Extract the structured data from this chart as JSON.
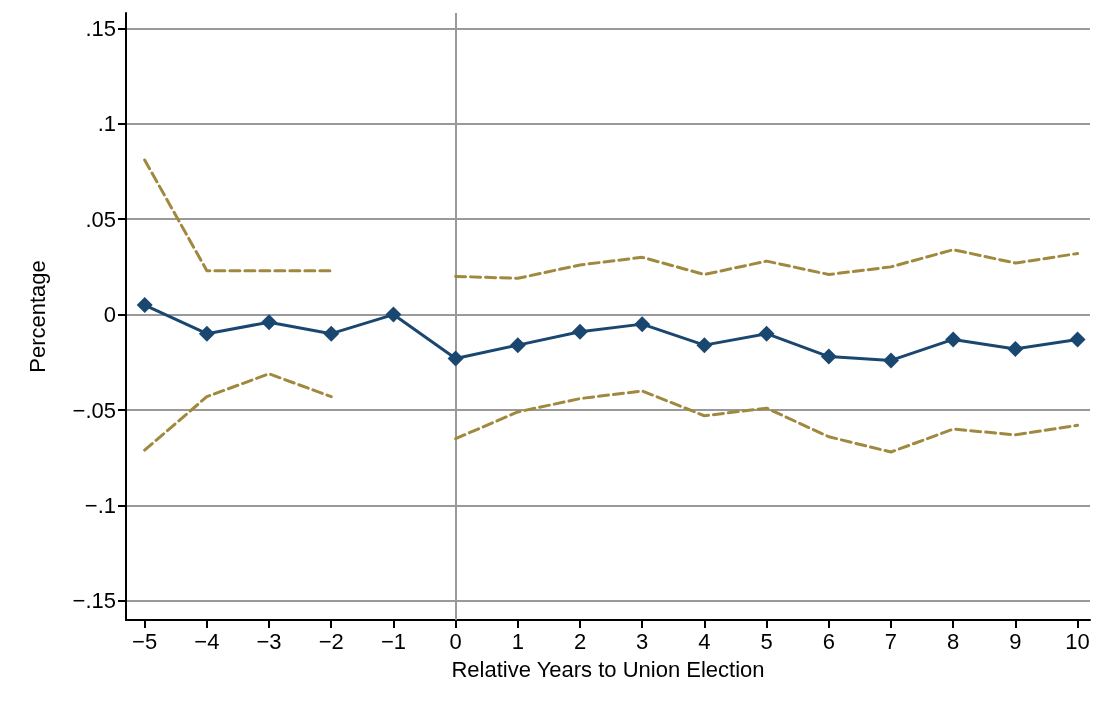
{
  "chart_data": {
    "type": "line",
    "xlabel": "Relative Years to Union Election",
    "ylabel": "Percentage",
    "x": [
      -5,
      -4,
      -3,
      -2,
      -1,
      0,
      1,
      2,
      3,
      4,
      5,
      6,
      7,
      8,
      9,
      10
    ],
    "series": [
      {
        "color": "#1a476f",
        "marker": "diamond",
        "line_style": "solid",
        "values": [
          0.005,
          -0.01,
          -0.004,
          -0.01,
          0,
          -0.023,
          -0.016,
          -0.009,
          -0.005,
          -0.016,
          -0.01,
          -0.022,
          -0.024,
          -0.013,
          -0.018,
          -0.013
        ]
      },
      {
        "color": "#a0893f",
        "marker": "none",
        "line_style": "dashed",
        "values": [
          0.081,
          0.023,
          0.023,
          0.023,
          null,
          0.02,
          0.019,
          0.026,
          0.03,
          0.021,
          0.028,
          0.021,
          0.025,
          0.034,
          0.027,
          0.032
        ]
      },
      {
        "color": "#a0893f",
        "marker": "none",
        "line_style": "dashed",
        "values": [
          -0.071,
          -0.043,
          -0.031,
          -0.043,
          null,
          -0.065,
          -0.051,
          -0.044,
          -0.04,
          -0.053,
          -0.049,
          -0.064,
          -0.072,
          -0.06,
          -0.063,
          -0.058
        ]
      }
    ],
    "xlim": [
      -5.3,
      10.2
    ],
    "xticks": [
      {
        "value": -5,
        "label": "−5"
      },
      {
        "value": -4,
        "label": "−4"
      },
      {
        "value": -3,
        "label": "−3"
      },
      {
        "value": -2,
        "label": "−2"
      },
      {
        "value": -1,
        "label": "−1"
      },
      0,
      1,
      2,
      3,
      4,
      5,
      6,
      7,
      8,
      9,
      10
    ],
    "ylim": [
      -0.16,
      0.158
    ],
    "yticks": [
      {
        "value": -0.15,
        "label": "−.15"
      },
      {
        "value": -0.1,
        "label": "−.1"
      },
      {
        "value": -0.05,
        "label": "−.05"
      },
      0,
      {
        "value": 0.05,
        "label": ".05"
      },
      {
        "value": 0.1,
        "label": ".1"
      },
      {
        "value": 0.15,
        "label": ".15"
      }
    ],
    "ref_lines": [
      {
        "axis": "x",
        "value": 0,
        "color": "#999999"
      }
    ],
    "grid": "y"
  }
}
